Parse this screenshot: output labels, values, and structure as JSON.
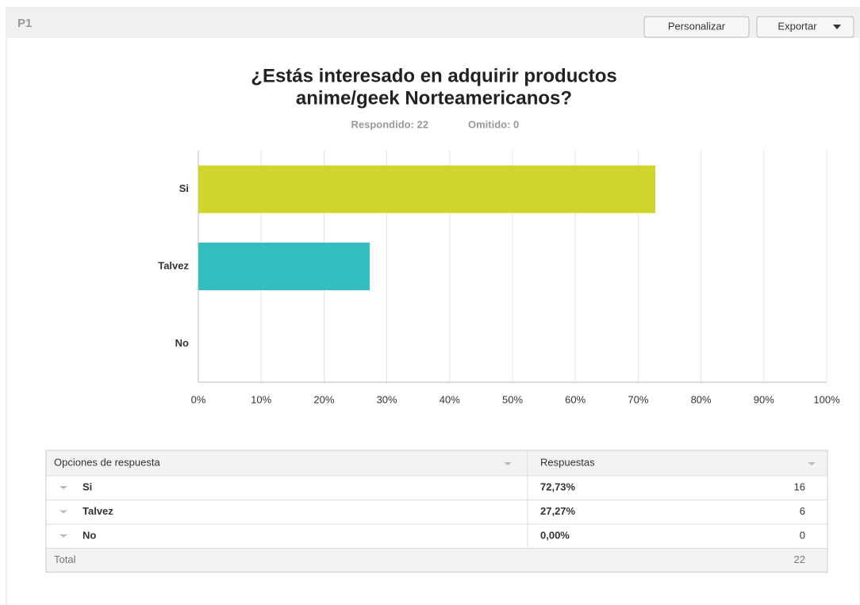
{
  "header": {
    "question": "P1",
    "buttons": [
      "Personalizar",
      "Exportar"
    ]
  },
  "chart_data": {
    "type": "bar",
    "orientation": "horizontal",
    "title": "¿Estás interesado en adquirir productos anime/geek Norteamericanos?",
    "title_lines": [
      "¿Estás interesado en adquirir productos",
      "anime/geek Norteamericanos?"
    ],
    "subtitle": [
      "Respondido: 22",
      "Omitido: 0"
    ],
    "categories": [
      "Si",
      "Talvez",
      "No"
    ],
    "values": [
      72.73,
      27.27,
      0
    ],
    "colors": [
      "#d0d42b",
      "#33bec1",
      "#f7931e"
    ],
    "xlim": [
      0,
      100
    ],
    "xticks": [
      {
        "value": 0,
        "label": "0%"
      },
      {
        "value": 10,
        "label": "10%"
      },
      {
        "value": 20,
        "label": "20%"
      },
      {
        "value": 30,
        "label": "30%"
      },
      {
        "value": 40,
        "label": "40%"
      },
      {
        "value": 50,
        "label": "50%"
      },
      {
        "value": 60,
        "label": "60%"
      },
      {
        "value": 70,
        "label": "70%"
      },
      {
        "value": 80,
        "label": "80%"
      },
      {
        "value": 90,
        "label": "90%"
      },
      {
        "value": 100,
        "label": "100%"
      }
    ],
    "grid": true
  },
  "table": {
    "headers": [
      "Opciones de respuesta",
      "Respuestas"
    ],
    "rows": [
      [
        "Si",
        "72,73%",
        "16"
      ],
      [
        "Talvez",
        "27,27%",
        "6"
      ],
      [
        "No",
        "0,00%",
        "0"
      ]
    ],
    "total": [
      "Total",
      "22"
    ]
  }
}
